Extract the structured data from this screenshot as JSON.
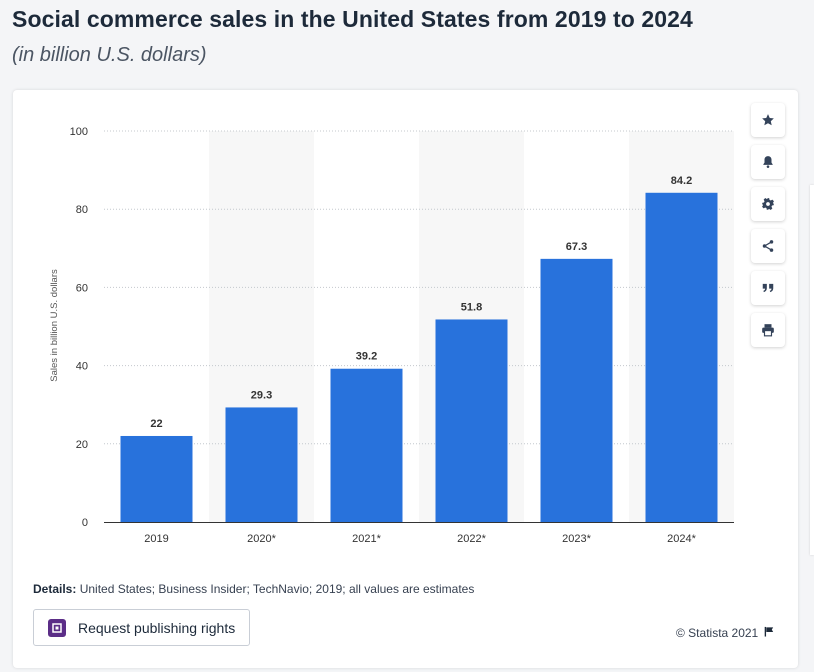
{
  "header": {
    "title": "Social commerce sales in the United States from 2019 to 2024",
    "subtitle": "(in billion U.S. dollars)"
  },
  "chart_data": {
    "type": "bar",
    "categories": [
      "2019",
      "2020*",
      "2021*",
      "2022*",
      "2023*",
      "2024*"
    ],
    "values": [
      22,
      29.3,
      39.2,
      51.8,
      67.3,
      84.2
    ],
    "value_labels": [
      "22",
      "29.3",
      "39.2",
      "51.8",
      "67.3",
      "84.2"
    ],
    "ylabel": "Sales in billion U.S. dollars",
    "ylim": [
      0,
      100
    ],
    "yticks": [
      0,
      20,
      40,
      60,
      80,
      100
    ],
    "grid": true,
    "bar_color": "#2872dc",
    "band_color": "#f7f7f7"
  },
  "toolbar": {
    "items": [
      {
        "icon": "star-icon"
      },
      {
        "icon": "bell-icon"
      },
      {
        "icon": "gear-icon"
      },
      {
        "icon": "share-icon"
      },
      {
        "icon": "quote-icon"
      },
      {
        "icon": "print-icon"
      }
    ]
  },
  "footer": {
    "details_label": "Details:",
    "details_text": " United States; Business Insider; TechNavio; 2019; all values are estimates",
    "request_label": "Request publishing rights",
    "copyright": "© Statista 2021"
  }
}
